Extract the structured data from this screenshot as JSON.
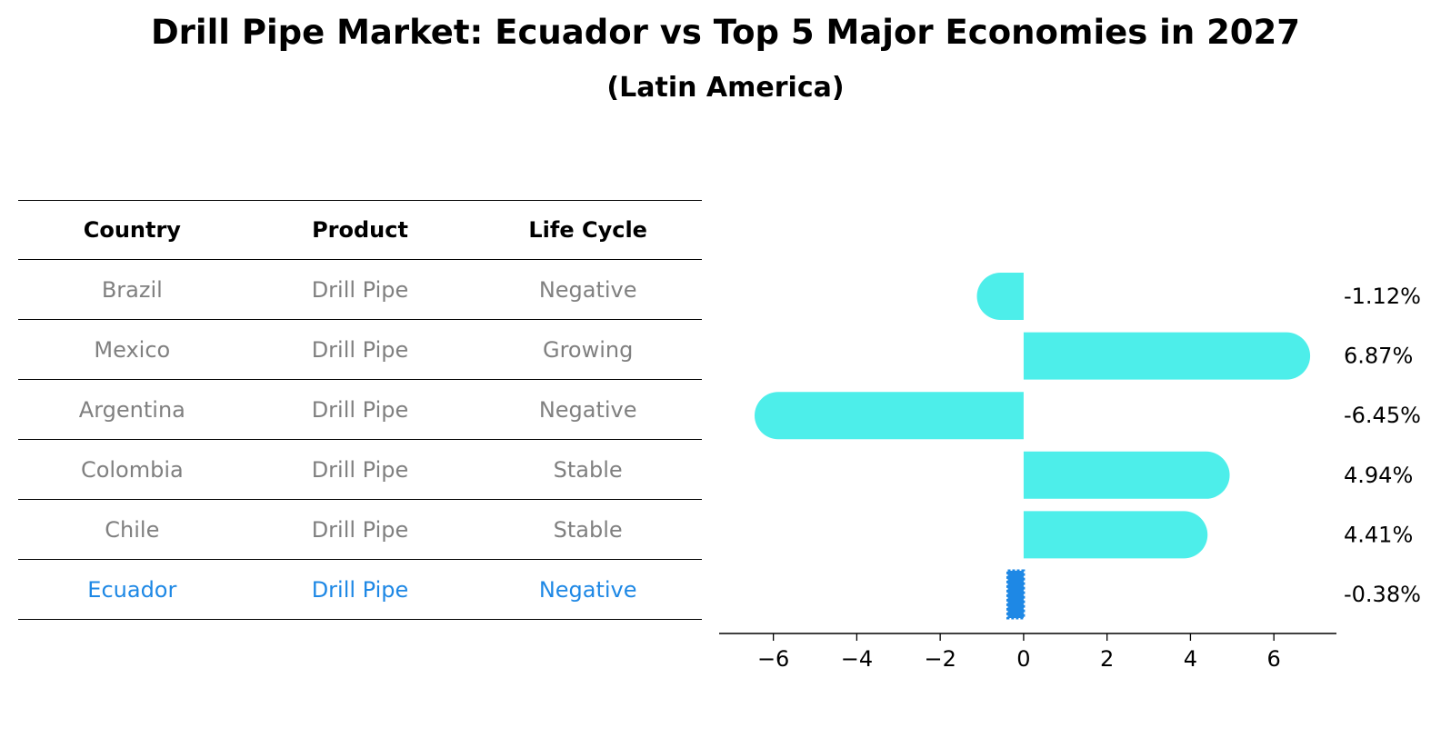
{
  "title": "Drill Pipe Market: Ecuador vs Top 5 Major Economies in 2027",
  "subtitle": "(Latin America)",
  "table": {
    "headers": [
      "Country",
      "Product",
      "Life Cycle"
    ],
    "rows": [
      {
        "country": "Brazil",
        "product": "Drill Pipe",
        "life_cycle": "Negative"
      },
      {
        "country": "Mexico",
        "product": "Drill Pipe",
        "life_cycle": "Growing"
      },
      {
        "country": "Argentina",
        "product": "Drill Pipe",
        "life_cycle": "Negative"
      },
      {
        "country": "Colombia",
        "product": "Drill Pipe",
        "life_cycle": "Stable"
      },
      {
        "country": "Chile",
        "product": "Drill Pipe",
        "life_cycle": "Stable"
      },
      {
        "country": "Ecuador",
        "product": "Drill Pipe",
        "life_cycle": "Negative"
      }
    ]
  },
  "colors": {
    "bar": "#4deeea",
    "highlight": "#1e88e5",
    "muted_text": "#808080"
  },
  "chart_data": {
    "type": "bar",
    "orientation": "horizontal",
    "categories": [
      "Brazil",
      "Mexico",
      "Argentina",
      "Colombia",
      "Chile",
      "Ecuador"
    ],
    "values": [
      -1.12,
      6.87,
      -6.45,
      4.94,
      4.41,
      -0.38
    ],
    "value_labels": [
      "-1.12%",
      "6.87%",
      "-6.45%",
      "4.94%",
      "4.41%",
      "-0.38%"
    ],
    "highlight_category": "Ecuador",
    "xlim": [
      -7.3,
      7.5
    ],
    "xticks": [
      -6,
      -4,
      -2,
      0,
      2,
      4,
      6
    ],
    "xtick_labels": [
      "−6",
      "−4",
      "−2",
      "0",
      "2",
      "4",
      "6"
    ],
    "xlabel": "",
    "ylabel": "",
    "grid": false
  }
}
